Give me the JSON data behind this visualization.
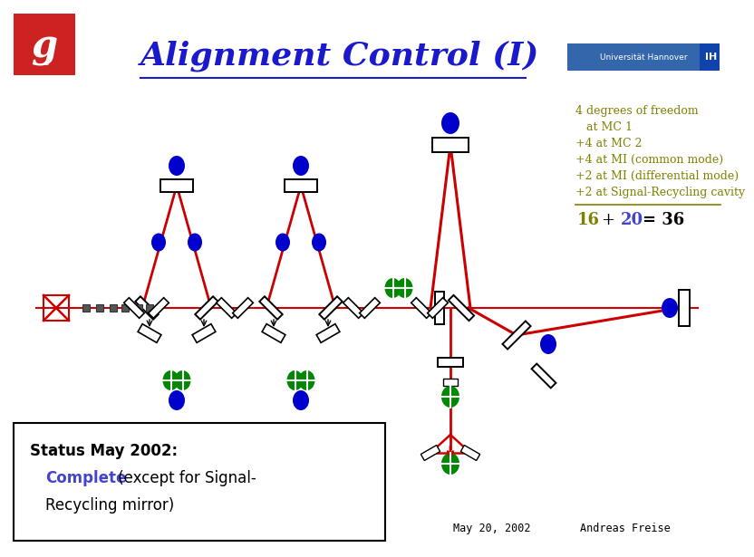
{
  "title": "Alignment Control (I)",
  "title_color": "#1a1acc",
  "bg_color": "#ffffff",
  "olive": "#808000",
  "blue_text": "#4444cc",
  "black": "#000000",
  "red": "#cc0000",
  "green": "#008800",
  "blue_dot": "#0000cc",
  "annotation_lines": [
    "4 degrees of freedom",
    "   at MC 1",
    "+4 at MC 2",
    "+4 at MI (common mode)",
    "+2 at MI (differential mode)",
    "+2 at Signal-Recycling cavity"
  ],
  "footer_date": "May 20, 2002",
  "footer_author": "Andreas Freise"
}
